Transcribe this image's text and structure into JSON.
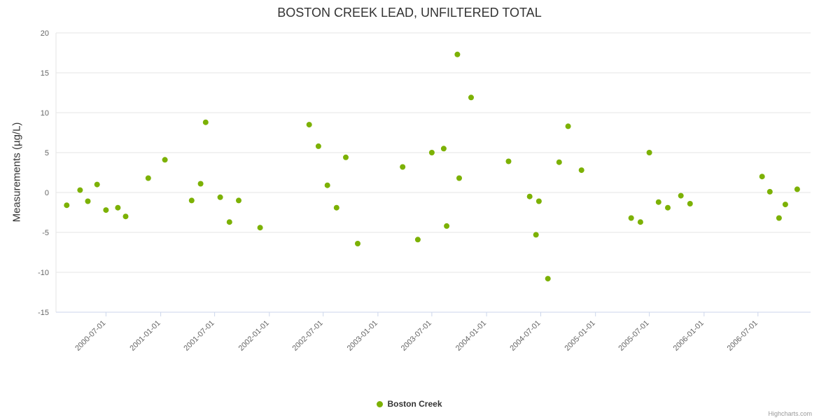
{
  "chart_data": {
    "type": "scatter",
    "title": "BOSTON CREEK LEAD, UNFILTERED TOTAL",
    "xlabel": "",
    "ylabel": "Measurements (µg/L)",
    "ylim": [
      -15,
      20
    ],
    "yticks": [
      -15,
      -10,
      -5,
      0,
      5,
      10,
      15,
      20
    ],
    "xticks": [
      "2000-07-01",
      "2001-01-01",
      "2001-07-01",
      "2002-01-01",
      "2002-07-01",
      "2003-01-01",
      "2003-07-01",
      "2004-01-01",
      "2004-07-01",
      "2005-01-01",
      "2005-07-01",
      "2006-01-01",
      "2006-07-01"
    ],
    "x_range": [
      "2000-01-15",
      "2006-12-25"
    ],
    "grid": true,
    "legend_position": "bottom",
    "credits": "Highcharts.com",
    "series": [
      {
        "name": "Boston Creek",
        "color": "#7cb104",
        "points": [
          {
            "x": "2000-02-20",
            "y": -1.6
          },
          {
            "x": "2000-04-05",
            "y": 0.3
          },
          {
            "x": "2000-05-01",
            "y": -1.1
          },
          {
            "x": "2000-06-01",
            "y": 1.0
          },
          {
            "x": "2000-07-01",
            "y": -2.2
          },
          {
            "x": "2000-08-10",
            "y": -1.9
          },
          {
            "x": "2000-09-05",
            "y": -3.0
          },
          {
            "x": "2000-11-20",
            "y": 1.8
          },
          {
            "x": "2001-01-15",
            "y": 4.1
          },
          {
            "x": "2001-04-15",
            "y": -1.0
          },
          {
            "x": "2001-05-15",
            "y": 1.1
          },
          {
            "x": "2001-06-01",
            "y": 8.8
          },
          {
            "x": "2001-07-20",
            "y": -0.6
          },
          {
            "x": "2001-08-20",
            "y": -3.7
          },
          {
            "x": "2001-09-20",
            "y": -1.0
          },
          {
            "x": "2001-12-01",
            "y": -4.4
          },
          {
            "x": "2002-05-15",
            "y": 8.5
          },
          {
            "x": "2002-06-15",
            "y": 5.8
          },
          {
            "x": "2002-07-15",
            "y": 0.9
          },
          {
            "x": "2002-08-15",
            "y": -1.9
          },
          {
            "x": "2002-09-15",
            "y": 4.4
          },
          {
            "x": "2002-10-25",
            "y": -6.4
          },
          {
            "x": "2003-03-25",
            "y": 3.2
          },
          {
            "x": "2003-05-15",
            "y": -5.9
          },
          {
            "x": "2003-07-01",
            "y": 5.0
          },
          {
            "x": "2003-08-10",
            "y": 5.5
          },
          {
            "x": "2003-08-20",
            "y": -4.2
          },
          {
            "x": "2003-09-25",
            "y": 17.3
          },
          {
            "x": "2003-10-01",
            "y": 1.8
          },
          {
            "x": "2003-11-10",
            "y": 11.9
          },
          {
            "x": "2004-03-15",
            "y": 3.9
          },
          {
            "x": "2004-05-25",
            "y": -0.5
          },
          {
            "x": "2004-06-15",
            "y": -5.3
          },
          {
            "x": "2004-06-25",
            "y": -1.1
          },
          {
            "x": "2004-07-25",
            "y": -10.8
          },
          {
            "x": "2004-09-01",
            "y": 3.8
          },
          {
            "x": "2004-10-01",
            "y": 8.3
          },
          {
            "x": "2004-11-15",
            "y": 2.8
          },
          {
            "x": "2005-05-01",
            "y": -3.2
          },
          {
            "x": "2005-06-01",
            "y": -3.7
          },
          {
            "x": "2005-07-01",
            "y": 5.0
          },
          {
            "x": "2005-08-01",
            "y": -1.2
          },
          {
            "x": "2005-09-01",
            "y": -1.9
          },
          {
            "x": "2005-10-15",
            "y": -0.4
          },
          {
            "x": "2005-11-15",
            "y": -1.4
          },
          {
            "x": "2006-07-15",
            "y": 2.0
          },
          {
            "x": "2006-08-10",
            "y": 0.1
          },
          {
            "x": "2006-09-10",
            "y": -3.2
          },
          {
            "x": "2006-10-01",
            "y": -1.5
          },
          {
            "x": "2006-11-10",
            "y": 0.4
          }
        ]
      }
    ]
  }
}
